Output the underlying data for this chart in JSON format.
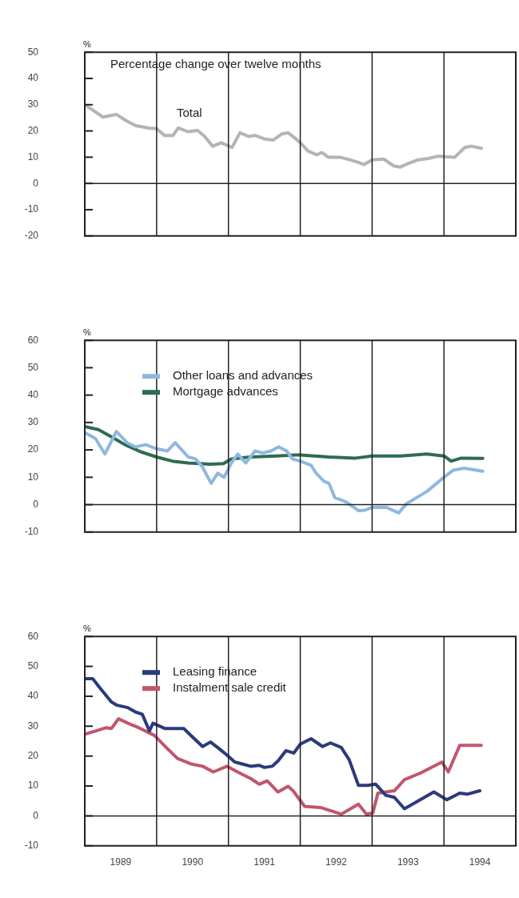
{
  "chart_data": [
    {
      "type": "line",
      "ylabel": "%",
      "annotations": [
        "Percentage change over twelve months"
      ],
      "xlim": [
        1989,
        1995
      ],
      "ylim": [
        -20,
        50
      ],
      "yticks": [
        -20,
        -10,
        0,
        10,
        20,
        30,
        40,
        50
      ],
      "tick_labels": "y",
      "ref_lines": [
        {
          "axis": "y",
          "value": 0
        },
        {
          "axis": "x",
          "value": 1990
        },
        {
          "axis": "x",
          "value": 1991
        },
        {
          "axis": "x",
          "value": 1992
        },
        {
          "axis": "x",
          "value": 1993
        },
        {
          "axis": "x",
          "value": 1994
        }
      ],
      "series": [
        {
          "name": "Total",
          "color": "#b4b4b4",
          "x": [
            1989.0,
            1989.11,
            1989.25,
            1989.44,
            1989.57,
            1989.71,
            1989.89,
            1990.0,
            1990.11,
            1990.23,
            1990.3,
            1990.44,
            1990.57,
            1990.67,
            1990.78,
            1990.9,
            1991.05,
            1991.16,
            1991.28,
            1991.37,
            1991.51,
            1991.62,
            1991.74,
            1991.83,
            1991.92,
            1992.0,
            1992.11,
            1992.23,
            1992.3,
            1992.39,
            1992.55,
            1992.69,
            1992.8,
            1992.89,
            1993.0,
            1993.16,
            1993.3,
            1993.39,
            1993.5,
            1993.64,
            1993.78,
            1993.92,
            1994.0,
            1994.15,
            1994.29,
            1994.38,
            1994.52
          ],
          "values": [
            30,
            28,
            25.3,
            26.3,
            24,
            22,
            21.1,
            20.9,
            18.3,
            18.3,
            21.1,
            19.7,
            20.2,
            17.9,
            14.2,
            15.5,
            13.7,
            19.3,
            17.9,
            18.3,
            16.9,
            16.5,
            18.8,
            19.3,
            17.4,
            15.5,
            12.3,
            10.9,
            11.8,
            10,
            10,
            9,
            8.1,
            7.2,
            9,
            9.3,
            6.7,
            6.2,
            7.6,
            9,
            9.5,
            10.4,
            10.2,
            10,
            13.7,
            14.2,
            13.4
          ]
        }
      ]
    },
    {
      "type": "line",
      "ylabel": "%",
      "legend": "top left",
      "xlim": [
        1989,
        1995
      ],
      "ylim": [
        -10,
        60
      ],
      "yticks": [
        -10,
        0,
        10,
        20,
        30,
        40,
        50,
        60
      ],
      "tick_labels": "y",
      "ref_lines": [
        {
          "axis": "y",
          "value": 0
        },
        {
          "axis": "x",
          "value": 1990
        },
        {
          "axis": "x",
          "value": 1991
        },
        {
          "axis": "x",
          "value": 1992
        },
        {
          "axis": "x",
          "value": 1993
        },
        {
          "axis": "x",
          "value": 1994
        }
      ],
      "series": [
        {
          "name": "Other loans and advances",
          "color": "#8fb8e0",
          "x": [
            1989.0,
            1989.15,
            1989.28,
            1989.44,
            1989.59,
            1989.7,
            1989.85,
            1990.0,
            1990.15,
            1990.26,
            1990.44,
            1990.54,
            1990.63,
            1990.76,
            1990.85,
            1990.94,
            1991.04,
            1991.13,
            1991.24,
            1991.37,
            1991.48,
            1991.59,
            1991.7,
            1991.81,
            1991.89,
            1992.0,
            1992.15,
            1992.22,
            1992.33,
            1992.4,
            1992.48,
            1992.63,
            1992.75,
            1992.81,
            1992.9,
            1993.0,
            1993.07,
            1993.2,
            1993.37,
            1993.48,
            1993.76,
            1994.0,
            1994.13,
            1994.28,
            1994.54
          ],
          "values": [
            26.3,
            24.1,
            18.5,
            26.7,
            22.6,
            21.1,
            21.9,
            20.4,
            19.6,
            22.6,
            17.4,
            16.7,
            14.1,
            7.8,
            11.5,
            10,
            15.2,
            18.5,
            15.2,
            19.6,
            18.9,
            19.6,
            21.1,
            19.6,
            16.7,
            15.9,
            14.4,
            11.5,
            8.5,
            7.8,
            2.6,
            1.1,
            -1,
            -2.2,
            -2,
            -1,
            -1,
            -1,
            -3,
            0.4,
            4.8,
            10,
            12.6,
            13.3,
            12.2
          ]
        },
        {
          "name": "Mortgage advances",
          "color": "#2e6b50",
          "x": [
            1989.0,
            1989.19,
            1989.37,
            1989.56,
            1989.78,
            1990.0,
            1990.22,
            1990.44,
            1990.74,
            1990.93,
            1991.04,
            1991.3,
            1991.67,
            1991.93,
            1992.0,
            1992.4,
            1992.77,
            1993.0,
            1993.4,
            1993.76,
            1994.0,
            1994.1,
            1994.24,
            1994.54
          ],
          "values": [
            28.5,
            27.4,
            24.8,
            21.9,
            19.3,
            17.4,
            15.9,
            15.2,
            14.8,
            15,
            16.7,
            17.4,
            17.8,
            18.1,
            18.1,
            17.4,
            17,
            17.8,
            17.8,
            18.5,
            17.8,
            15.9,
            17,
            16.9
          ]
        }
      ]
    },
    {
      "type": "line",
      "legend": "top left",
      "ylabel": "%",
      "xlim": [
        1989,
        1995
      ],
      "ylim": [
        -10,
        60
      ],
      "yticks": [
        -10,
        0,
        10,
        20,
        30,
        40,
        50,
        60
      ],
      "xticks": [
        {
          "value": 1989.5,
          "label": "1989"
        },
        {
          "value": 1990.5,
          "label": "1990"
        },
        {
          "value": 1991.5,
          "label": "1991"
        },
        {
          "value": 1992.5,
          "label": "1992"
        },
        {
          "value": 1993.5,
          "label": "1993"
        },
        {
          "value": 1994.5,
          "label": "1994"
        }
      ],
      "ref_lines": [
        {
          "axis": "y",
          "value": 0
        },
        {
          "axis": "x",
          "value": 1990
        },
        {
          "axis": "x",
          "value": 1991
        },
        {
          "axis": "x",
          "value": 1992
        },
        {
          "axis": "x",
          "value": 1993
        },
        {
          "axis": "x",
          "value": 1994
        }
      ],
      "series": [
        {
          "name": "Leasing finance",
          "color": "#2b3a7a",
          "x": [
            1989.0,
            1989.11,
            1989.22,
            1989.37,
            1989.45,
            1989.6,
            1989.71,
            1989.8,
            1989.9,
            1989.95,
            1990.12,
            1990.27,
            1990.38,
            1990.49,
            1990.64,
            1990.75,
            1990.87,
            1990.98,
            1991.09,
            1991.2,
            1991.31,
            1991.43,
            1991.5,
            1991.61,
            1991.69,
            1991.8,
            1991.91,
            1992.0,
            1992.15,
            1992.31,
            1992.42,
            1992.57,
            1992.68,
            1992.81,
            1992.94,
            1993.05,
            1993.19,
            1993.31,
            1993.45,
            1993.64,
            1993.86,
            1994.04,
            1994.22,
            1994.33,
            1994.5
          ],
          "values": [
            45.9,
            45.9,
            42.5,
            38.1,
            37,
            36.2,
            34.7,
            34,
            28.4,
            31,
            29.2,
            29.2,
            29.2,
            26.6,
            23.2,
            24.7,
            22.5,
            20.3,
            18,
            17.3,
            16.6,
            16.9,
            16.2,
            16.6,
            18.4,
            21.8,
            21,
            24,
            25.8,
            23.2,
            24.4,
            22.9,
            18.8,
            10.2,
            10.2,
            10.6,
            6.9,
            6.2,
            2.4,
            5,
            8,
            5.4,
            7.6,
            7.3,
            8.4
          ]
        },
        {
          "name": "Instalment sale credit",
          "color": "#c0566e",
          "x": [
            1989.0,
            1989.15,
            1989.3,
            1989.37,
            1989.47,
            1989.6,
            1989.75,
            1989.97,
            1990.12,
            1990.29,
            1990.49,
            1990.64,
            1990.79,
            1990.98,
            1991.16,
            1991.31,
            1991.43,
            1991.54,
            1991.69,
            1991.83,
            1991.9,
            1992.06,
            1992.28,
            1992.57,
            1992.81,
            1992.92,
            1993.01,
            1993.08,
            1993.31,
            1993.45,
            1993.67,
            1993.97,
            1994.06,
            1994.22,
            1994.52
          ],
          "values": [
            27.3,
            28.4,
            29.5,
            29.2,
            32.5,
            31,
            29.5,
            26.9,
            23.2,
            19.2,
            17.3,
            16.6,
            14.7,
            16.6,
            14.3,
            12.5,
            10.6,
            11.7,
            8,
            9.9,
            8.4,
            3.2,
            2.8,
            0.6,
            3.9,
            0.6,
            1,
            7.6,
            8.4,
            12.1,
            14.3,
            18,
            14.7,
            23.6,
            23.6
          ]
        }
      ]
    }
  ]
}
